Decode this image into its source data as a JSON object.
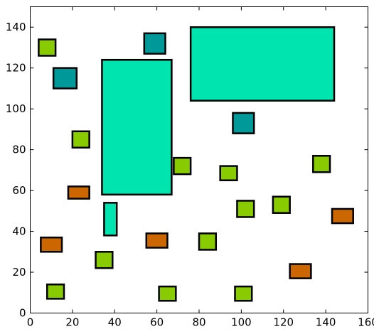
{
  "chart_data": {
    "type": "rectangles",
    "title": "",
    "xlabel": "",
    "ylabel": "",
    "xlim": [
      0,
      160
    ],
    "ylim": [
      0,
      150
    ],
    "xticks": [
      0,
      20,
      40,
      60,
      80,
      100,
      120,
      140,
      160
    ],
    "yticks": [
      0,
      20,
      40,
      60,
      80,
      100,
      120,
      140
    ],
    "grid": false,
    "legend": false,
    "colors": {
      "teal": "#009999",
      "aqua": "#00E5B0",
      "green": "#88CC00",
      "orange": "#CC6600"
    },
    "rectangles": [
      {
        "x0": 76,
        "y0": 104,
        "x1": 144,
        "y1": 140,
        "color": "#00E5B0"
      },
      {
        "x0": 34,
        "y0": 58,
        "x1": 67,
        "y1": 124,
        "color": "#00E5B0"
      },
      {
        "x0": 35,
        "y0": 38,
        "x1": 41,
        "y1": 54,
        "color": "#00E5B0"
      },
      {
        "x0": 54,
        "y0": 127,
        "x1": 64,
        "y1": 137,
        "color": "#009999"
      },
      {
        "x0": 11,
        "y0": 110,
        "x1": 22,
        "y1": 120,
        "color": "#009999"
      },
      {
        "x0": 96,
        "y0": 88,
        "x1": 106,
        "y1": 98,
        "color": "#009999"
      },
      {
        "x0": 4,
        "y0": 126,
        "x1": 12,
        "y1": 134,
        "color": "#88CC00"
      },
      {
        "x0": 20,
        "y0": 81,
        "x1": 28,
        "y1": 89,
        "color": "#88CC00"
      },
      {
        "x0": 68,
        "y0": 68,
        "x1": 76,
        "y1": 76,
        "color": "#88CC00"
      },
      {
        "x0": 90,
        "y0": 65,
        "x1": 98,
        "y1": 72,
        "color": "#88CC00"
      },
      {
        "x0": 134,
        "y0": 69,
        "x1": 142,
        "y1": 77,
        "color": "#88CC00"
      },
      {
        "x0": 98,
        "y0": 47,
        "x1": 106,
        "y1": 55,
        "color": "#88CC00"
      },
      {
        "x0": 115,
        "y0": 49,
        "x1": 123,
        "y1": 57,
        "color": "#88CC00"
      },
      {
        "x0": 80,
        "y0": 31,
        "x1": 88,
        "y1": 39,
        "color": "#88CC00"
      },
      {
        "x0": 31,
        "y0": 22,
        "x1": 39,
        "y1": 30,
        "color": "#88CC00"
      },
      {
        "x0": 8,
        "y0": 7,
        "x1": 16,
        "y1": 14,
        "color": "#88CC00"
      },
      {
        "x0": 61,
        "y0": 6,
        "x1": 69,
        "y1": 13,
        "color": "#88CC00"
      },
      {
        "x0": 97,
        "y0": 6,
        "x1": 105,
        "y1": 13,
        "color": "#88CC00"
      },
      {
        "x0": 18,
        "y0": 56,
        "x1": 28,
        "y1": 62,
        "color": "#CC6600"
      },
      {
        "x0": 143,
        "y0": 44,
        "x1": 153,
        "y1": 51,
        "color": "#CC6600"
      },
      {
        "x0": 5,
        "y0": 30,
        "x1": 15,
        "y1": 37,
        "color": "#CC6600"
      },
      {
        "x0": 55,
        "y0": 32,
        "x1": 65,
        "y1": 39,
        "color": "#CC6600"
      },
      {
        "x0": 123,
        "y0": 17,
        "x1": 133,
        "y1": 24,
        "color": "#CC6600"
      }
    ]
  }
}
